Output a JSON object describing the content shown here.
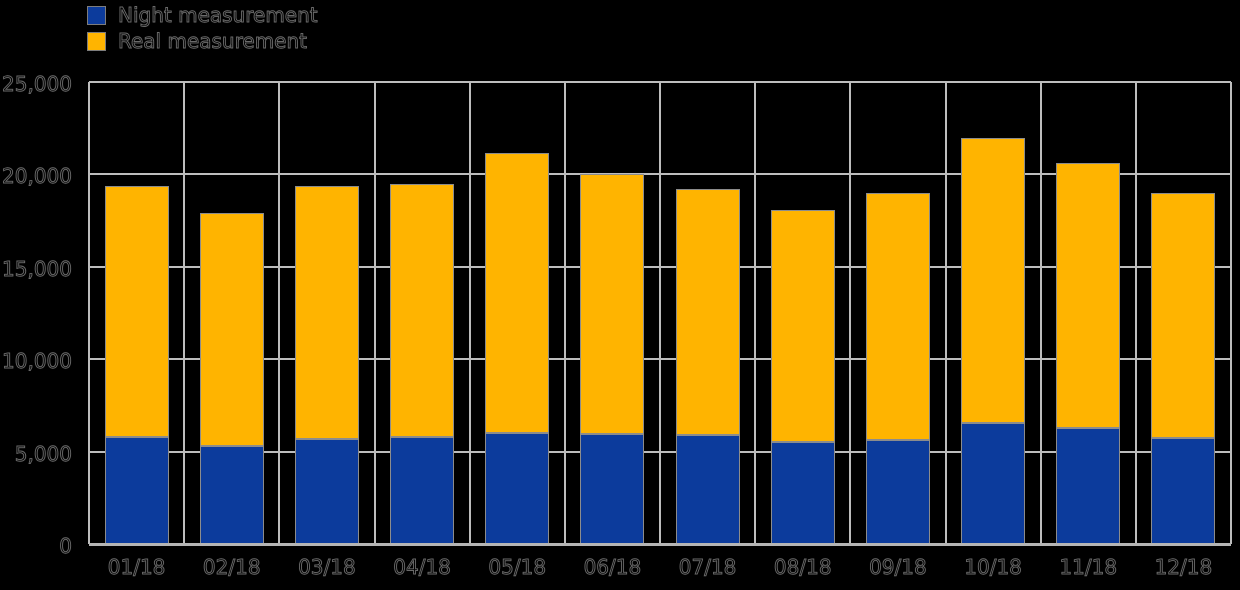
{
  "chart": {
    "background": "#000000",
    "gridline_color": "#bdbdbd",
    "axis_line_color": "#b5b5b5",
    "bar_border_color": "#8c8c8c",
    "text_color": "#000000"
  },
  "legend": {
    "position": "top-left",
    "items": [
      {
        "label": "Night measurement",
        "color": "#0c3b9c"
      },
      {
        "label": "Real measurement",
        "color": "#ffb400"
      }
    ]
  },
  "yaxis": {
    "ticks": [
      {
        "label": "25,000",
        "value": 25000
      },
      {
        "label": "20,000",
        "value": 20000
      },
      {
        "label": "15,000",
        "value": 15000
      },
      {
        "label": "10,000",
        "value": 10000
      },
      {
        "label": "5,000",
        "value": 5000
      },
      {
        "label": "0",
        "value": 0
      }
    ]
  },
  "chart_data": {
    "type": "bar",
    "stacked": true,
    "title": "",
    "xlabel": "",
    "ylabel": "",
    "ylim": [
      0,
      25000
    ],
    "grid": true,
    "legend_position": "top-left",
    "categories": [
      "01/18",
      "02/18",
      "03/18",
      "04/18",
      "05/18",
      "06/18",
      "07/18",
      "08/18",
      "09/18",
      "10/18",
      "11/18",
      "12/18"
    ],
    "series": [
      {
        "name": "Night measurement",
        "color": "#0c3b9c",
        "values": [
          5800,
          5300,
          5700,
          5800,
          6000,
          5950,
          5900,
          5500,
          5650,
          6550,
          6300,
          5750
        ]
      },
      {
        "name": "Real measurement",
        "color": "#ffb400",
        "values": [
          13600,
          12600,
          13700,
          13700,
          15150,
          14050,
          13300,
          12550,
          13350,
          15400,
          14300,
          13250
        ]
      }
    ],
    "stack_totals": [
      19400,
      17900,
      19400,
      19500,
      21150,
      20000,
      19200,
      18050,
      19000,
      21950,
      20600,
      19000
    ]
  }
}
